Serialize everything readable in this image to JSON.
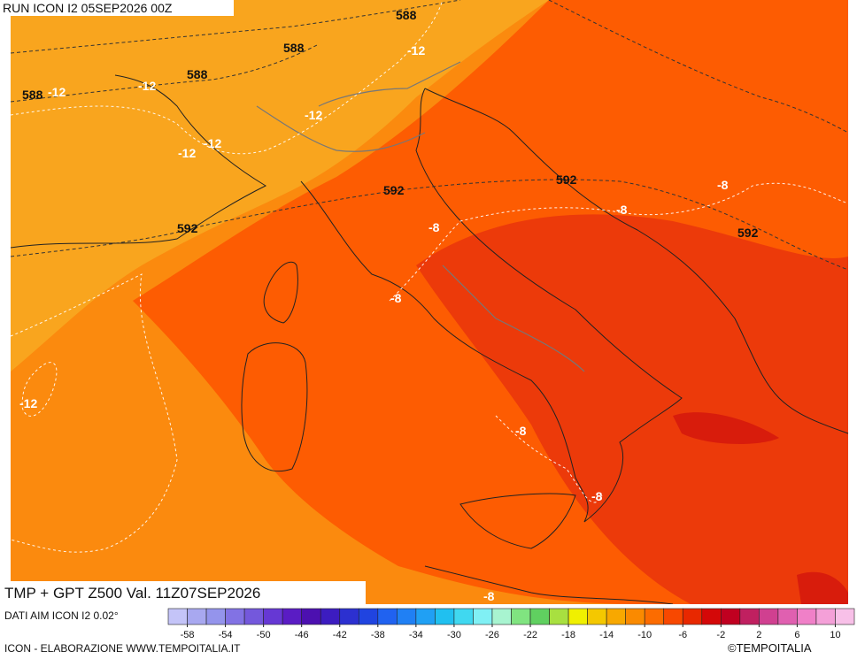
{
  "header": {
    "run": "RUN ICON I2 05SEP2026 00Z"
  },
  "map": {
    "geopotential_labels": [
      588,
      588,
      588,
      588,
      592,
      592,
      592,
      592
    ],
    "temperature_labels": [
      -12,
      -12,
      -12,
      -12,
      -12,
      -12,
      -12,
      -8,
      -8,
      -8,
      -8,
      -8,
      -8,
      -8
    ]
  },
  "footer": {
    "title": "TMP + GPT Z500 Val. 11Z07SEP2026",
    "source": "DATI AIM ICON I2 0.02°",
    "credit": "ICON - ELABORAZIONE WWW.TEMPOITALIA.IT",
    "logo": "©TEMPOITALIA"
  },
  "colorbar": {
    "range": [
      -60,
      12
    ],
    "ticks": [
      -58,
      -54,
      -50,
      -46,
      -42,
      -38,
      -34,
      -30,
      -26,
      -22,
      -18,
      -14,
      -10,
      -6,
      -2,
      2,
      6,
      10
    ],
    "colors": [
      "#c4c4f8",
      "#a8a8f0",
      "#9494ec",
      "#8272e4",
      "#7458dc",
      "#6638d4",
      "#5a1cc4",
      "#4c10b0",
      "#3c1cc0",
      "#2c30d0",
      "#2044e0",
      "#2062f0",
      "#2080f4",
      "#20a0f4",
      "#20c0f0",
      "#40d8f0",
      "#80f0f4",
      "#a8f4d0",
      "#80e480",
      "#60d060",
      "#a8e040",
      "#f0f000",
      "#f4c800",
      "#f8a800",
      "#fa8a00",
      "#fc6c00",
      "#f84800",
      "#e82800",
      "#d40808",
      "#c00020",
      "#c02060",
      "#d04090",
      "#e060b0",
      "#f080c8",
      "#f4a0d8",
      "#f8c0e8"
    ]
  }
}
